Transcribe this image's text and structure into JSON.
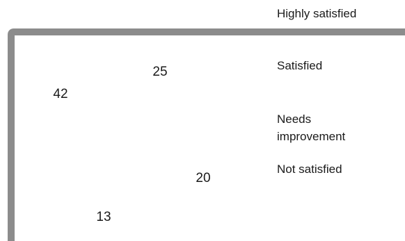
{
  "chart_data": {
    "type": "pie",
    "title": "",
    "categories": [
      "Highly satisfied",
      "Satisfied",
      "Needs improvement",
      "Not satisfied"
    ],
    "values": [
      42,
      25,
      20,
      13
    ],
    "legend_position": "right",
    "data_labels_shown": true,
    "colors": {
      "frame": "#8c8c8c",
      "background": "#ffffff",
      "text": "#1a1a1a"
    },
    "legend": [
      {
        "label": "Highly satisfied"
      },
      {
        "label": "Satisfied"
      },
      {
        "label": "Needs improvement",
        "lines": [
          "Needs",
          "improvement"
        ]
      },
      {
        "label": "Not satisfied"
      }
    ]
  }
}
